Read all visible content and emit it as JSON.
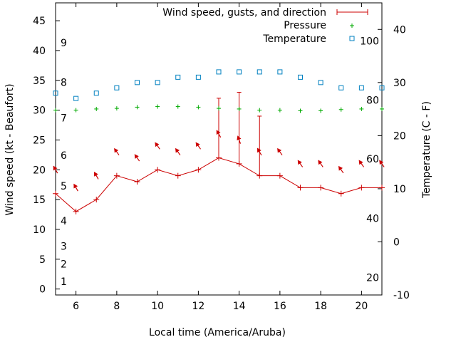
{
  "chart_data": {
    "type": "line",
    "title": "",
    "xlabel": "Local time (America/Aruba)",
    "ylabel": "Wind speed (kt - Beaufort)",
    "y2label": "Temperature (C - F)",
    "xlim": [
      5,
      21
    ],
    "ylim": [
      -1,
      48
    ],
    "y2lim": [
      -10,
      45
    ],
    "x_ticks": [
      6,
      8,
      10,
      12,
      14,
      16,
      18,
      20
    ],
    "y_ticks": [
      0,
      5,
      10,
      15,
      20,
      25,
      30,
      35,
      40,
      45
    ],
    "y2_ticks": [
      -10,
      0,
      10,
      20,
      30,
      40
    ],
    "beaufort_labels": [
      {
        "label": "1",
        "kt": 1.3
      },
      {
        "label": "2",
        "kt": 4.2
      },
      {
        "label": "3",
        "kt": 7.2
      },
      {
        "label": "4",
        "kt": 11.4
      },
      {
        "label": "5",
        "kt": 17.3
      },
      {
        "label": "6",
        "kt": 22.4
      },
      {
        "label": "7",
        "kt": 28.7
      },
      {
        "label": "8",
        "kt": 34.7
      },
      {
        "label": "9",
        "kt": 41.3
      }
    ],
    "fahrenheit_labels": [
      {
        "label": "20",
        "c": -6.7
      },
      {
        "label": "40",
        "c": 4.4
      },
      {
        "label": "60",
        "c": 15.6
      },
      {
        "label": "80",
        "c": 26.7
      },
      {
        "label": "100",
        "c": 37.8
      }
    ],
    "legend_position": "top-right",
    "series": [
      {
        "name": "Wind speed, gusts, and direction",
        "color": "#cc0000",
        "x": [
          5,
          6,
          7,
          8,
          9,
          10,
          11,
          12,
          13,
          14,
          15,
          16,
          17,
          18,
          19,
          20,
          21
        ],
        "values": [
          16,
          13,
          15,
          19,
          18,
          20,
          19,
          20,
          22,
          21,
          19,
          19,
          17,
          17,
          16,
          17,
          17
        ],
        "gusts": [
          null,
          null,
          null,
          null,
          null,
          null,
          null,
          null,
          32,
          33,
          29,
          null,
          null,
          null,
          null,
          null,
          null
        ],
        "direction_deg": [
          60,
          60,
          60,
          55,
          55,
          55,
          55,
          55,
          60,
          70,
          60,
          55,
          55,
          55,
          55,
          55,
          55
        ]
      },
      {
        "name": "Pressure",
        "color": "#00aa00",
        "x": [
          5,
          6,
          7,
          8,
          9,
          10,
          11,
          12,
          13,
          14,
          15,
          16,
          17,
          18,
          19,
          20,
          21
        ],
        "values": [
          30.0,
          30.0,
          30.2,
          30.3,
          30.5,
          30.6,
          30.6,
          30.5,
          30.3,
          30.2,
          30.0,
          30.0,
          29.9,
          29.9,
          30.1,
          30.2,
          30.2
        ]
      },
      {
        "name": "Temperature",
        "color": "#0080c0",
        "x": [
          5,
          6,
          7,
          8,
          9,
          10,
          11,
          12,
          13,
          14,
          15,
          16,
          17,
          18,
          19,
          20,
          21
        ],
        "values": [
          28,
          27,
          28,
          29,
          30,
          30,
          31,
          31,
          32,
          32,
          32,
          32,
          31,
          30,
          29,
          29,
          29
        ]
      }
    ]
  }
}
